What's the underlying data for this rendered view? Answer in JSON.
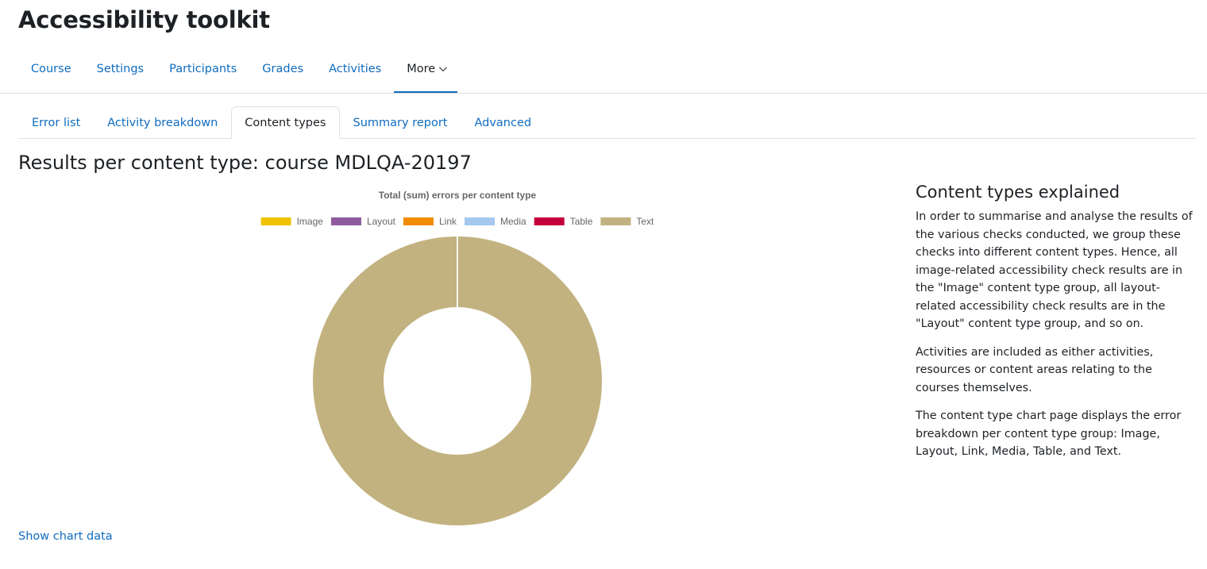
{
  "page": {
    "title": "Accessibility toolkit"
  },
  "primary_nav": {
    "items": [
      {
        "label": "Course"
      },
      {
        "label": "Settings"
      },
      {
        "label": "Participants"
      },
      {
        "label": "Grades"
      },
      {
        "label": "Activities"
      },
      {
        "label": "More"
      }
    ],
    "active": "More"
  },
  "sub_tabs": {
    "items": [
      {
        "label": "Error list"
      },
      {
        "label": "Activity breakdown"
      },
      {
        "label": "Content types"
      },
      {
        "label": "Summary report"
      },
      {
        "label": "Advanced"
      }
    ],
    "active": "Content types"
  },
  "results": {
    "heading": "Results per content type: course MDLQA-20197"
  },
  "chart_data": {
    "type": "pie",
    "variant": "doughnut",
    "title": "Total (sum) errors per content type",
    "legend_position": "top",
    "categories": [
      "Image",
      "Layout",
      "Link",
      "Media",
      "Table",
      "Text"
    ],
    "values": [
      0,
      0,
      0,
      0,
      0,
      1
    ],
    "colors": [
      "#f0c300",
      "#8e5c9e",
      "#f08c00",
      "#a4c8ee",
      "#c4003a",
      "#c2b280"
    ]
  },
  "show_chart_data": {
    "label": "Show chart data"
  },
  "explain": {
    "heading": "Content types explained",
    "paragraphs": [
      "In order to summarise and analyse the results of the various checks conducted, we group these checks into different content types. Hence, all image-related accessibility check results are in the \"Image\" content type group, all layout-related accessibility check results are in the \"Layout\" content type group, and so on.",
      "Activities are included as either activities, resources or content areas relating to the courses themselves.",
      "The content type chart page displays the error breakdown per content type group: Image, Layout, Link, Media, Table, and Text."
    ]
  }
}
